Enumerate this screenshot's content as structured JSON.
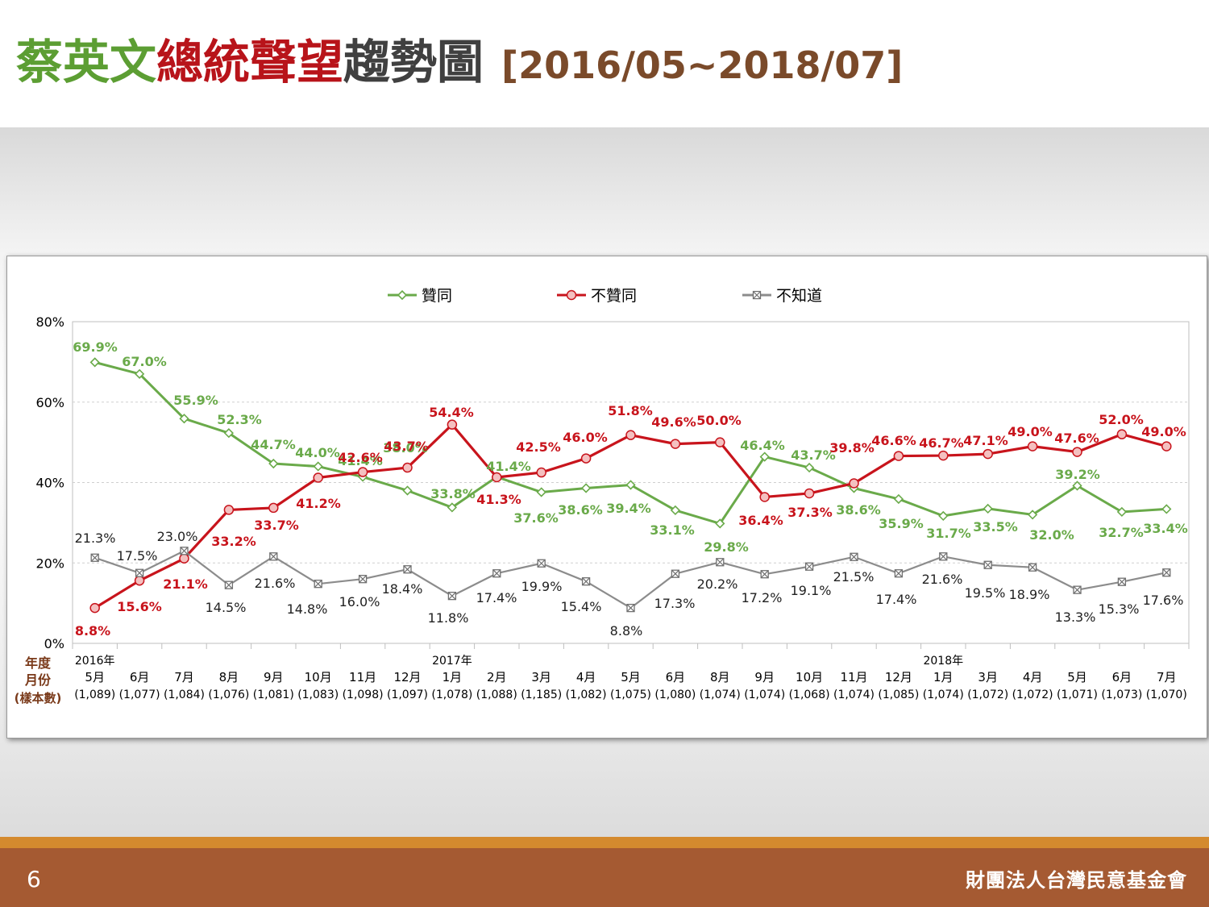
{
  "slide": {
    "title_part1": "蔡英文",
    "title_part2": "總統聲望",
    "title_part3": "趨勢圖",
    "title_range": "[2016/05~2018/07]",
    "page_number": "6",
    "organization": "財團法人台灣民意基金會"
  },
  "colors": {
    "approve": "#6aaa4a",
    "disapprove": "#c8141c",
    "unknown": "#8c8c8c",
    "title_green": "#5c9e33",
    "title_red": "#b8141a",
    "footer": "#a55a32",
    "footer_stripe": "#d48a2e"
  },
  "chart_data": {
    "type": "line",
    "ylim": [
      0,
      80
    ],
    "yticks": [
      "0%",
      "20%",
      "40%",
      "60%",
      "80%"
    ],
    "grid": true,
    "legend_position": "top",
    "row_labels": [
      "年度",
      "月份",
      "(樣本數)"
    ],
    "years": [
      {
        "label": "2016年",
        "index": 0
      },
      {
        "label": "2017年",
        "index": 8
      },
      {
        "label": "2018年",
        "index": 19
      }
    ],
    "months": [
      "5月",
      "6月",
      "7月",
      "8月",
      "9月",
      "10月",
      "11月",
      "12月",
      "1月",
      "2月",
      "3月",
      "4月",
      "5月",
      "6月",
      "8月",
      "9月",
      "10月",
      "11月",
      "12月",
      "1月",
      "3月",
      "4月",
      "5月",
      "6月",
      "7月"
    ],
    "samples": [
      "(1,089)",
      "(1,077)",
      "(1,084)",
      "(1,076)",
      "(1,081)",
      "(1,083)",
      "(1,098)",
      "(1,097)",
      "(1,078)",
      "(1,088)",
      "(1,185)",
      "(1,082)",
      "(1,075)",
      "(1,080)",
      "(1,074)",
      "(1,074)",
      "(1,068)",
      "(1,074)",
      "(1,085)",
      "(1,074)",
      "(1,072)",
      "(1,072)",
      "(1,071)",
      "(1,073)",
      "(1,070)"
    ],
    "series": [
      {
        "name": "贊同",
        "marker": "diamond",
        "values": [
          69.9,
          67.0,
          55.9,
          52.3,
          44.7,
          44.0,
          41.4,
          38.0,
          33.8,
          41.4,
          37.6,
          38.6,
          39.4,
          33.1,
          29.8,
          46.4,
          43.7,
          38.6,
          35.9,
          31.7,
          33.5,
          32.0,
          39.2,
          32.7,
          33.4
        ],
        "labels": [
          "69.9%",
          "67.0%",
          "55.9%",
          "52.3%",
          "44.7%",
          "44.0%",
          "41.4%",
          "38.0%",
          "33.8%",
          "41.4%",
          "37.6%",
          "38.6%",
          "39.4%",
          "33.1%",
          "29.8%",
          "46.4%",
          "43.7%",
          "38.6%",
          "35.9%",
          "31.7%",
          "33.5%",
          "32.0%",
          "39.2%",
          "32.7%",
          "33.4%"
        ]
      },
      {
        "name": "不贊同",
        "marker": "circle",
        "values": [
          8.8,
          15.6,
          21.1,
          33.2,
          33.7,
          41.2,
          42.6,
          43.7,
          54.4,
          41.3,
          42.5,
          46.0,
          51.8,
          49.6,
          50.0,
          36.4,
          37.3,
          39.8,
          46.6,
          46.7,
          47.1,
          49.0,
          47.6,
          52.0,
          49.0
        ],
        "labels": [
          "8.8%",
          "15.6%",
          "21.1%",
          "33.2%",
          "33.7%",
          "41.2%",
          "42.6%",
          "43.7%",
          "54.4%",
          "41.3%",
          "42.5%",
          "46.0%",
          "51.8%",
          "49.6%",
          "50.0%",
          "36.4%",
          "37.3%",
          "39.8%",
          "46.6%",
          "46.7%",
          "47.1%",
          "49.0%",
          "47.6%",
          "52.0%",
          "49.0%"
        ]
      },
      {
        "name": "不知道",
        "marker": "square-x",
        "values": [
          21.3,
          17.5,
          23.0,
          14.5,
          21.6,
          14.8,
          16.0,
          18.4,
          11.8,
          17.4,
          19.9,
          15.4,
          8.8,
          17.3,
          20.2,
          17.2,
          19.1,
          21.5,
          17.4,
          21.6,
          19.5,
          18.9,
          13.3,
          15.3,
          17.6
        ],
        "labels": [
          "21.3%",
          "17.5%",
          "23.0%",
          "14.5%",
          "21.6%",
          "14.8%",
          "16.0%",
          "18.4%",
          "11.8%",
          "17.4%",
          "19.9%",
          "15.4%",
          "8.8%",
          "17.3%",
          "20.2%",
          "17.2%",
          "19.1%",
          "21.5%",
          "17.4%",
          "21.6%",
          "19.5%",
          "18.9%",
          "13.3%",
          "15.3%",
          "17.6%"
        ]
      }
    ]
  }
}
